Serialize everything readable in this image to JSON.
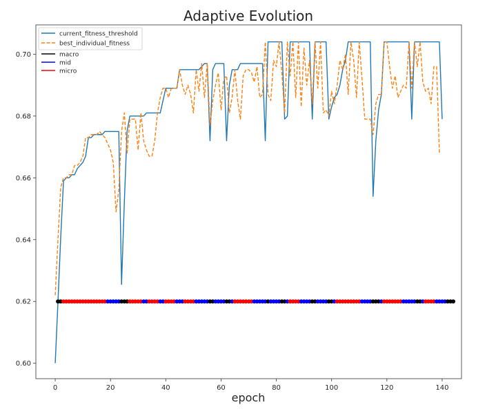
{
  "chart_data": {
    "type": "line",
    "title": "Adaptive Evolution",
    "xlabel": "epoch",
    "ylabel": "",
    "xlim": [
      -7,
      147
    ],
    "ylim": [
      0.595,
      0.7095
    ],
    "xticks": [
      0,
      20,
      40,
      60,
      80,
      100,
      120,
      140
    ],
    "xtick_labels": [
      "0",
      "20",
      "40",
      "60",
      "80",
      "100",
      "120",
      "140"
    ],
    "yticks": [
      0.6,
      0.62,
      0.64,
      0.66,
      0.68,
      0.7
    ],
    "ytick_labels": [
      "0.60",
      "0.62",
      "0.64",
      "0.66",
      "0.68",
      "0.70"
    ],
    "grid": false,
    "legend_position": "top-left",
    "series": [
      {
        "name": "current_fitness_threshold",
        "color": "#1f77b4",
        "style": "solid",
        "points": [
          [
            0,
            0.6
          ],
          [
            1,
            0.62
          ],
          [
            2,
            0.641
          ],
          [
            3,
            0.659
          ],
          [
            4,
            0.66
          ],
          [
            5,
            0.66
          ],
          [
            6,
            0.661
          ],
          [
            7,
            0.661
          ],
          [
            8,
            0.663
          ],
          [
            9,
            0.664
          ],
          [
            10,
            0.665
          ],
          [
            11,
            0.667
          ],
          [
            12,
            0.673
          ],
          [
            13,
            0.673
          ],
          [
            14,
            0.674
          ],
          [
            15,
            0.674
          ],
          [
            16,
            0.674
          ],
          [
            17,
            0.674
          ],
          [
            18,
            0.675
          ],
          [
            19,
            0.675
          ],
          [
            20,
            0.675
          ],
          [
            21,
            0.675
          ],
          [
            22,
            0.675
          ],
          [
            23,
            0.675
          ],
          [
            24,
            0.6255
          ],
          [
            25,
            0.652
          ],
          [
            26,
            0.675
          ],
          [
            27,
            0.68
          ],
          [
            28,
            0.68
          ],
          [
            29,
            0.68
          ],
          [
            30,
            0.68
          ],
          [
            31,
            0.68
          ],
          [
            32,
            0.68
          ],
          [
            33,
            0.681
          ],
          [
            34,
            0.681
          ],
          [
            35,
            0.681
          ],
          [
            36,
            0.681
          ],
          [
            37,
            0.681
          ],
          [
            38,
            0.681
          ],
          [
            39,
            0.685
          ],
          [
            40,
            0.689
          ],
          [
            41,
            0.689
          ],
          [
            42,
            0.689
          ],
          [
            43,
            0.689
          ],
          [
            44,
            0.689
          ],
          [
            45,
            0.695
          ],
          [
            46,
            0.695
          ],
          [
            47,
            0.695
          ],
          [
            48,
            0.695
          ],
          [
            49,
            0.695
          ],
          [
            50,
            0.695
          ],
          [
            51,
            0.695
          ],
          [
            52,
            0.695
          ],
          [
            53,
            0.696
          ],
          [
            54,
            0.697
          ],
          [
            55,
            0.697
          ],
          [
            56,
            0.672
          ],
          [
            57,
            0.695
          ],
          [
            58,
            0.697
          ],
          [
            59,
            0.697
          ],
          [
            60,
            0.697
          ],
          [
            61,
            0.697
          ],
          [
            62,
            0.672
          ],
          [
            63,
            0.69
          ],
          [
            64,
            0.695
          ],
          [
            65,
            0.695
          ],
          [
            66,
            0.695
          ],
          [
            67,
            0.697
          ],
          [
            68,
            0.697
          ],
          [
            69,
            0.697
          ],
          [
            70,
            0.697
          ],
          [
            71,
            0.697
          ],
          [
            72,
            0.697
          ],
          [
            73,
            0.697
          ],
          [
            74,
            0.697
          ],
          [
            75,
            0.697
          ],
          [
            76,
            0.672
          ],
          [
            77,
            0.704
          ],
          [
            78,
            0.704
          ],
          [
            79,
            0.704
          ],
          [
            80,
            0.704
          ],
          [
            81,
            0.704
          ],
          [
            82,
            0.704
          ],
          [
            83,
            0.679
          ],
          [
            84,
            0.68
          ],
          [
            85,
            0.704
          ],
          [
            86,
            0.704
          ],
          [
            87,
            0.704
          ],
          [
            88,
            0.704
          ],
          [
            89,
            0.704
          ],
          [
            90,
            0.704
          ],
          [
            91,
            0.704
          ],
          [
            92,
            0.704
          ],
          [
            93,
            0.679
          ],
          [
            94,
            0.704
          ],
          [
            95,
            0.704
          ],
          [
            96,
            0.704
          ],
          [
            97,
            0.704
          ],
          [
            98,
            0.704
          ],
          [
            99,
            0.679
          ],
          [
            100,
            0.683
          ],
          [
            101,
            0.686
          ],
          [
            102,
            0.687
          ],
          [
            103,
            0.69
          ],
          [
            104,
            0.695
          ],
          [
            105,
            0.698
          ],
          [
            106,
            0.704
          ],
          [
            107,
            0.704
          ],
          [
            108,
            0.704
          ],
          [
            109,
            0.704
          ],
          [
            110,
            0.704
          ],
          [
            111,
            0.704
          ],
          [
            112,
            0.704
          ],
          [
            113,
            0.704
          ],
          [
            114,
            0.704
          ],
          [
            115,
            0.654
          ],
          [
            116,
            0.672
          ],
          [
            117,
            0.682
          ],
          [
            118,
            0.687
          ],
          [
            119,
            0.704
          ],
          [
            120,
            0.704
          ],
          [
            121,
            0.704
          ],
          [
            122,
            0.704
          ],
          [
            123,
            0.704
          ],
          [
            124,
            0.704
          ],
          [
            125,
            0.704
          ],
          [
            126,
            0.704
          ],
          [
            127,
            0.704
          ],
          [
            128,
            0.704
          ],
          [
            129,
            0.679
          ],
          [
            130,
            0.704
          ],
          [
            131,
            0.704
          ],
          [
            132,
            0.704
          ],
          [
            133,
            0.704
          ],
          [
            134,
            0.704
          ],
          [
            135,
            0.704
          ],
          [
            136,
            0.704
          ],
          [
            137,
            0.704
          ],
          [
            138,
            0.704
          ],
          [
            139,
            0.704
          ],
          [
            140,
            0.679
          ]
        ]
      },
      {
        "name": "best_individual_fitness",
        "color": "#ff7f0e",
        "style": "dashed",
        "points": [
          [
            0,
            0.622
          ],
          [
            1,
            0.64
          ],
          [
            2,
            0.657
          ],
          [
            3,
            0.66
          ],
          [
            4,
            0.66
          ],
          [
            5,
            0.661
          ],
          [
            6,
            0.661
          ],
          [
            7,
            0.664
          ],
          [
            8,
            0.664
          ],
          [
            9,
            0.665
          ],
          [
            10,
            0.667
          ],
          [
            11,
            0.673
          ],
          [
            12,
            0.673
          ],
          [
            13,
            0.674
          ],
          [
            14,
            0.674
          ],
          [
            15,
            0.674
          ],
          [
            16,
            0.675
          ],
          [
            17,
            0.674
          ],
          [
            18,
            0.673
          ],
          [
            19,
            0.671
          ],
          [
            20,
            0.669
          ],
          [
            21,
            0.665
          ],
          [
            22,
            0.649
          ],
          [
            23,
            0.656
          ],
          [
            24,
            0.675
          ],
          [
            25,
            0.681
          ],
          [
            26,
            0.668
          ],
          [
            27,
            0.679
          ],
          [
            28,
            0.679
          ],
          [
            29,
            0.679
          ],
          [
            30,
            0.669
          ],
          [
            31,
            0.681
          ],
          [
            32,
            0.672
          ],
          [
            33,
            0.669
          ],
          [
            34,
            0.667
          ],
          [
            35,
            0.667
          ],
          [
            36,
            0.672
          ],
          [
            37,
            0.681
          ],
          [
            38,
            0.686
          ],
          [
            39,
            0.689
          ],
          [
            40,
            0.689
          ],
          [
            41,
            0.686
          ],
          [
            42,
            0.689
          ],
          [
            43,
            0.689
          ],
          [
            44,
            0.689
          ],
          [
            45,
            0.695
          ],
          [
            46,
            0.69
          ],
          [
            47,
            0.687
          ],
          [
            48,
            0.69
          ],
          [
            49,
            0.687
          ],
          [
            50,
            0.681
          ],
          [
            51,
            0.695
          ],
          [
            52,
            0.688
          ],
          [
            53,
            0.697
          ],
          [
            54,
            0.686
          ],
          [
            55,
            0.697
          ],
          [
            56,
            0.677
          ],
          [
            57,
            0.685
          ],
          [
            58,
            0.69
          ],
          [
            59,
            0.694
          ],
          [
            60,
            0.682
          ],
          [
            61,
            0.692
          ],
          [
            62,
            0.693
          ],
          [
            63,
            0.681
          ],
          [
            64,
            0.686
          ],
          [
            65,
            0.695
          ],
          [
            66,
            0.685
          ],
          [
            67,
            0.679
          ],
          [
            68,
            0.693
          ],
          [
            69,
            0.695
          ],
          [
            70,
            0.695
          ],
          [
            71,
            0.694
          ],
          [
            72,
            0.691
          ],
          [
            73,
            0.696
          ],
          [
            74,
            0.686
          ],
          [
            75,
            0.687
          ],
          [
            76,
            0.704
          ],
          [
            77,
            0.687
          ],
          [
            78,
            0.685
          ],
          [
            79,
            0.698
          ],
          [
            80,
            0.696
          ],
          [
            81,
            0.704
          ],
          [
            82,
            0.694
          ],
          [
            83,
            0.681
          ],
          [
            84,
            0.704
          ],
          [
            85,
            0.693
          ],
          [
            86,
            0.704
          ],
          [
            87,
            0.686
          ],
          [
            88,
            0.704
          ],
          [
            89,
            0.683
          ],
          [
            90,
            0.702
          ],
          [
            91,
            0.69
          ],
          [
            92,
            0.698
          ],
          [
            93,
            0.684
          ],
          [
            94,
            0.704
          ],
          [
            95,
            0.689
          ],
          [
            96,
            0.704
          ],
          [
            97,
            0.681
          ],
          [
            98,
            0.682
          ],
          [
            99,
            0.68
          ],
          [
            100,
            0.688
          ],
          [
            101,
            0.684
          ],
          [
            102,
            0.69
          ],
          [
            103,
            0.698
          ],
          [
            104,
            0.695
          ],
          [
            105,
            0.7
          ],
          [
            106,
            0.687
          ],
          [
            107,
            0.704
          ],
          [
            108,
            0.698
          ],
          [
            109,
            0.686
          ],
          [
            110,
            0.704
          ],
          [
            111,
            0.692
          ],
          [
            112,
            0.679
          ],
          [
            113,
            0.679
          ],
          [
            114,
            0.679
          ],
          [
            115,
            0.674
          ],
          [
            116,
            0.684
          ],
          [
            117,
            0.687
          ],
          [
            118,
            0.687
          ],
          [
            119,
            0.704
          ],
          [
            120,
            0.704
          ],
          [
            121,
            0.696
          ],
          [
            122,
            0.689
          ],
          [
            123,
            0.693
          ],
          [
            124,
            0.686
          ],
          [
            125,
            0.688
          ],
          [
            126,
            0.69
          ],
          [
            127,
            0.689
          ],
          [
            128,
            0.704
          ],
          [
            129,
            0.689
          ],
          [
            130,
            0.704
          ],
          [
            131,
            0.696
          ],
          [
            132,
            0.704
          ],
          [
            133,
            0.691
          ],
          [
            134,
            0.688
          ],
          [
            135,
            0.689
          ],
          [
            136,
            0.684
          ],
          [
            137,
            0.696
          ],
          [
            138,
            0.696
          ],
          [
            139,
            0.668
          ]
        ]
      }
    ],
    "markers": {
      "y": 0.62,
      "x_start": 1,
      "categories": [
        {
          "name": "macro",
          "color": "#000000"
        },
        {
          "name": "mid",
          "color": "#0000ff"
        },
        {
          "name": "micro",
          "color": "#ff0000"
        }
      ],
      "sequence": [
        0,
        0,
        2,
        2,
        2,
        2,
        2,
        2,
        2,
        2,
        2,
        2,
        2,
        2,
        2,
        2,
        2,
        2,
        1,
        1,
        1,
        1,
        1,
        0,
        0,
        0,
        2,
        2,
        2,
        2,
        2,
        1,
        1,
        2,
        2,
        2,
        2,
        1,
        1,
        2,
        2,
        2,
        2,
        1,
        1,
        1,
        2,
        2,
        2,
        2,
        1,
        1,
        1,
        1,
        1,
        0,
        0,
        1,
        1,
        1,
        1,
        0,
        0,
        1,
        2,
        2,
        2,
        2,
        2,
        2,
        2,
        1,
        1,
        1,
        1,
        1,
        0,
        1,
        1,
        1,
        1,
        0,
        0,
        1,
        2,
        2,
        2,
        2,
        1,
        1,
        1,
        1,
        0,
        0,
        1,
        1,
        1,
        1,
        0,
        0,
        1,
        2,
        2,
        2,
        2,
        2,
        2,
        2,
        2,
        2,
        1,
        1,
        1,
        1,
        0,
        0,
        0,
        1,
        2,
        2,
        2,
        2,
        2,
        2,
        2,
        1,
        1,
        1,
        1,
        1,
        0,
        0,
        1,
        2,
        2,
        2,
        2,
        1,
        1,
        1,
        1,
        0,
        0,
        0
      ]
    }
  }
}
